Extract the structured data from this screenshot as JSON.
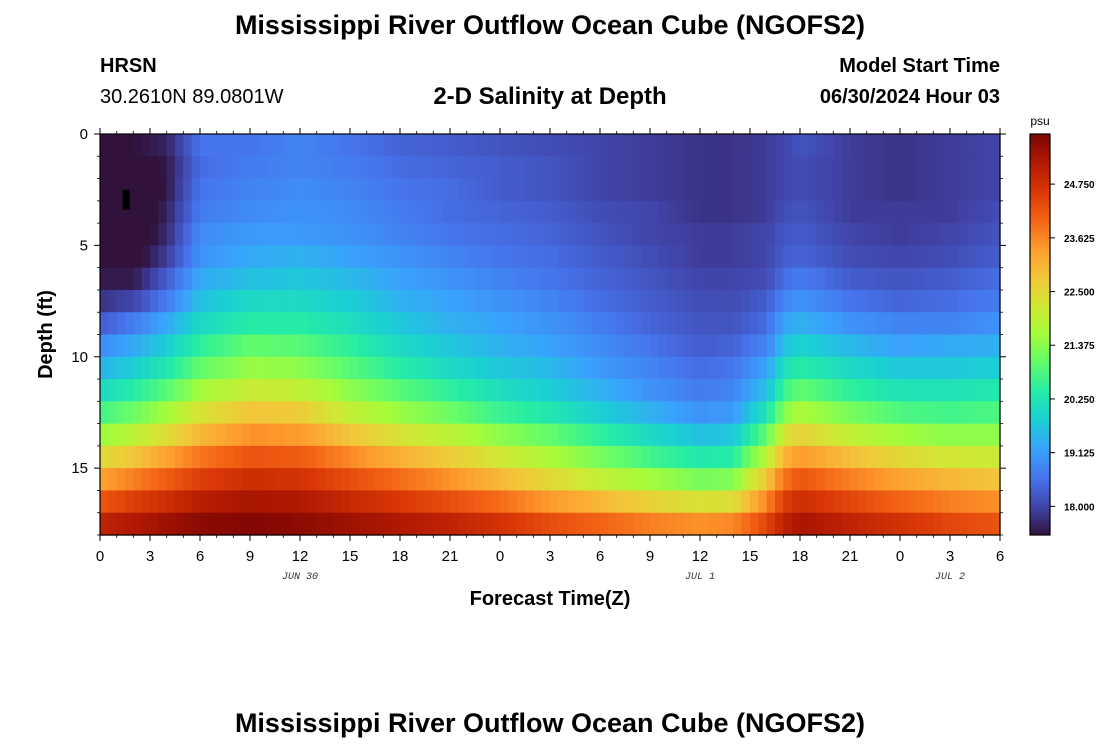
{
  "header": {
    "title": "Mississippi River Outflow Ocean Cube (NGOFS2)",
    "station_name": "HRSN",
    "station_coords": "30.2610N  89.0801W",
    "subtitle": "2-D Salinity at Depth",
    "model_start_label": "Model Start Time",
    "model_start_value": "06/30/2024 Hour 03"
  },
  "footer": {
    "title": "Mississippi River Outflow Ocean Cube (NGOFS2)"
  },
  "colors": {
    "colormap": [
      "#30123b",
      "#4145ab",
      "#4675ed",
      "#39a2fc",
      "#1bcfd4",
      "#24eca6",
      "#61fc6c",
      "#a4fc3b",
      "#d1e834",
      "#f3c63a",
      "#fe9b2d",
      "#f36315",
      "#d93806",
      "#b11901",
      "#7a0402"
    ],
    "marker": "#000000"
  },
  "chart_data": {
    "type": "heatmap",
    "title": "2-D Salinity at Depth",
    "xlabel": "Forecast Time(Z)",
    "ylabel": "Depth (ft)",
    "x_range_hours": [
      0,
      54
    ],
    "y_range_ft": [
      0,
      18
    ],
    "x_ticks": [
      {
        "hour": 0,
        "label": "0"
      },
      {
        "hour": 3,
        "label": "3"
      },
      {
        "hour": 6,
        "label": "6"
      },
      {
        "hour": 9,
        "label": "9"
      },
      {
        "hour": 12,
        "label": "12"
      },
      {
        "hour": 15,
        "label": "15"
      },
      {
        "hour": 18,
        "label": "18"
      },
      {
        "hour": 21,
        "label": "21"
      },
      {
        "hour": 24,
        "label": "0"
      },
      {
        "hour": 27,
        "label": "3"
      },
      {
        "hour": 30,
        "label": "6"
      },
      {
        "hour": 33,
        "label": "9"
      },
      {
        "hour": 36,
        "label": "12"
      },
      {
        "hour": 39,
        "label": "15"
      },
      {
        "hour": 42,
        "label": "18"
      },
      {
        "hour": 45,
        "label": "21"
      },
      {
        "hour": 48,
        "label": "0"
      },
      {
        "hour": 51,
        "label": "3"
      },
      {
        "hour": 54,
        "label": "6"
      }
    ],
    "date_labels": [
      {
        "hour": 12,
        "label": "JUN 30"
      },
      {
        "hour": 36,
        "label": "JUL 1"
      },
      {
        "hour": 51,
        "label": "JUL 2"
      }
    ],
    "y_ticks": [
      0,
      5,
      10,
      15
    ],
    "colorbar": {
      "unit": "psu",
      "range": [
        17.4,
        25.8
      ],
      "ticks": [
        {
          "value": 18.0,
          "label": "18.000"
        },
        {
          "value": 19.125,
          "label": "19.125"
        },
        {
          "value": 20.25,
          "label": "20.250"
        },
        {
          "value": 21.375,
          "label": "21.375"
        },
        {
          "value": 22.5,
          "label": "22.500"
        },
        {
          "value": 23.625,
          "label": "23.625"
        },
        {
          "value": 24.75,
          "label": "24.750"
        }
      ]
    },
    "time_step_hours": 0.5,
    "depth_layers": 18,
    "key_times_hours": [
      0,
      2,
      4,
      6,
      9,
      12,
      15,
      18,
      21,
      24,
      27,
      30,
      33,
      36,
      38,
      40,
      41,
      42,
      45,
      48,
      51,
      54
    ],
    "salinity_psu": [
      [
        17.4,
        17.4,
        17.6,
        18.6,
        18.6,
        18.8,
        18.6,
        18.4,
        18.3,
        18.2,
        18.1,
        18.0,
        17.9,
        17.8,
        17.8,
        17.9,
        18.0,
        18.2,
        17.9,
        17.8,
        17.9,
        18.0
      ],
      [
        17.3,
        17.1,
        17.5,
        18.5,
        18.7,
        18.8,
        18.7,
        18.5,
        18.4,
        18.3,
        18.2,
        18.0,
        17.9,
        17.8,
        17.8,
        17.9,
        18.0,
        18.1,
        17.9,
        17.8,
        17.9,
        18.0
      ],
      [
        17.2,
        16.9,
        17.5,
        18.6,
        18.8,
        18.9,
        18.8,
        18.6,
        18.5,
        18.3,
        18.2,
        18.0,
        17.9,
        17.8,
        17.8,
        17.9,
        18.0,
        18.1,
        17.9,
        17.8,
        17.9,
        18.0
      ],
      [
        17.1,
        16.9,
        17.6,
        18.7,
        18.9,
        19.0,
        18.9,
        18.7,
        18.5,
        18.4,
        18.3,
        18.1,
        18.0,
        17.8,
        17.8,
        17.9,
        18.1,
        18.2,
        17.9,
        17.9,
        17.9,
        18.1
      ],
      [
        17.2,
        17.0,
        17.7,
        18.9,
        19.1,
        19.1,
        19.0,
        18.8,
        18.6,
        18.5,
        18.4,
        18.2,
        18.0,
        17.9,
        17.9,
        18.0,
        18.2,
        18.3,
        18.0,
        17.9,
        18.0,
        18.2
      ],
      [
        17.3,
        17.2,
        17.9,
        19.0,
        19.3,
        19.4,
        19.2,
        19.0,
        18.8,
        18.6,
        18.5,
        18.3,
        18.1,
        17.9,
        17.9,
        18.0,
        18.3,
        18.4,
        18.1,
        18.0,
        18.1,
        18.3
      ],
      [
        17.5,
        17.5,
        18.3,
        19.3,
        19.6,
        19.7,
        19.5,
        19.2,
        19.0,
        18.8,
        18.6,
        18.4,
        18.2,
        18.0,
        18.0,
        18.1,
        18.5,
        18.7,
        18.3,
        18.2,
        18.3,
        18.5
      ],
      [
        17.8,
        18.0,
        18.7,
        19.6,
        20.0,
        20.0,
        19.8,
        19.4,
        19.2,
        19.0,
        18.8,
        18.5,
        18.3,
        18.1,
        18.1,
        18.3,
        18.8,
        19.0,
        18.6,
        18.4,
        18.5,
        18.7
      ],
      [
        18.3,
        18.7,
        19.3,
        20.0,
        20.4,
        20.4,
        20.1,
        19.7,
        19.4,
        19.2,
        19.0,
        18.7,
        18.4,
        18.2,
        18.2,
        18.5,
        19.2,
        19.4,
        19.0,
        18.8,
        18.8,
        19.0
      ],
      [
        18.9,
        19.3,
        19.8,
        20.5,
        21.0,
        20.9,
        20.5,
        20.0,
        19.7,
        19.4,
        19.2,
        18.9,
        18.6,
        18.3,
        18.4,
        18.8,
        19.6,
        19.9,
        19.5,
        19.2,
        19.3,
        19.4
      ],
      [
        19.4,
        19.8,
        20.3,
        21.0,
        21.5,
        21.4,
        20.9,
        20.4,
        20.0,
        19.7,
        19.5,
        19.1,
        18.8,
        18.5,
        18.6,
        19.2,
        20.1,
        20.4,
        20.0,
        19.7,
        19.7,
        19.8
      ],
      [
        20.0,
        20.4,
        20.9,
        21.6,
        22.1,
        22.0,
        21.4,
        20.9,
        20.5,
        20.1,
        19.8,
        19.4,
        19.0,
        18.7,
        18.8,
        19.6,
        20.6,
        21.0,
        20.5,
        20.2,
        20.2,
        20.3
      ],
      [
        20.7,
        21.1,
        21.6,
        22.3,
        22.8,
        22.7,
        22.0,
        21.5,
        21.1,
        20.6,
        20.3,
        19.8,
        19.4,
        19.0,
        19.1,
        20.2,
        21.3,
        21.7,
        21.2,
        20.8,
        20.7,
        20.8
      ],
      [
        21.5,
        21.9,
        22.4,
        23.0,
        23.5,
        23.4,
        22.8,
        22.3,
        21.9,
        21.4,
        21.0,
        20.5,
        20.0,
        19.6,
        19.7,
        21.0,
        22.2,
        22.6,
        22.0,
        21.6,
        21.4,
        21.4
      ],
      [
        22.4,
        22.8,
        23.3,
        23.8,
        24.2,
        24.1,
        23.6,
        23.1,
        22.7,
        22.2,
        21.7,
        21.2,
        20.7,
        20.3,
        20.4,
        21.9,
        23.0,
        23.4,
        22.9,
        22.5,
        22.2,
        22.1
      ],
      [
        23.3,
        23.7,
        24.1,
        24.5,
        24.8,
        24.7,
        24.3,
        23.9,
        23.5,
        23.0,
        22.5,
        22.0,
        21.6,
        21.2,
        21.3,
        22.8,
        23.8,
        24.2,
        23.7,
        23.3,
        23.0,
        22.8
      ],
      [
        24.2,
        24.5,
        24.8,
        25.1,
        25.3,
        25.2,
        24.9,
        24.6,
        24.3,
        23.9,
        23.4,
        23.0,
        22.6,
        22.3,
        22.4,
        23.6,
        24.5,
        24.8,
        24.4,
        24.0,
        23.7,
        23.5
      ],
      [
        25.0,
        25.2,
        25.4,
        25.6,
        25.7,
        25.6,
        25.4,
        25.2,
        25.0,
        24.7,
        24.3,
        24.0,
        23.7,
        23.5,
        23.6,
        24.4,
        25.0,
        25.3,
        25.0,
        24.7,
        24.4,
        24.2
      ]
    ]
  }
}
